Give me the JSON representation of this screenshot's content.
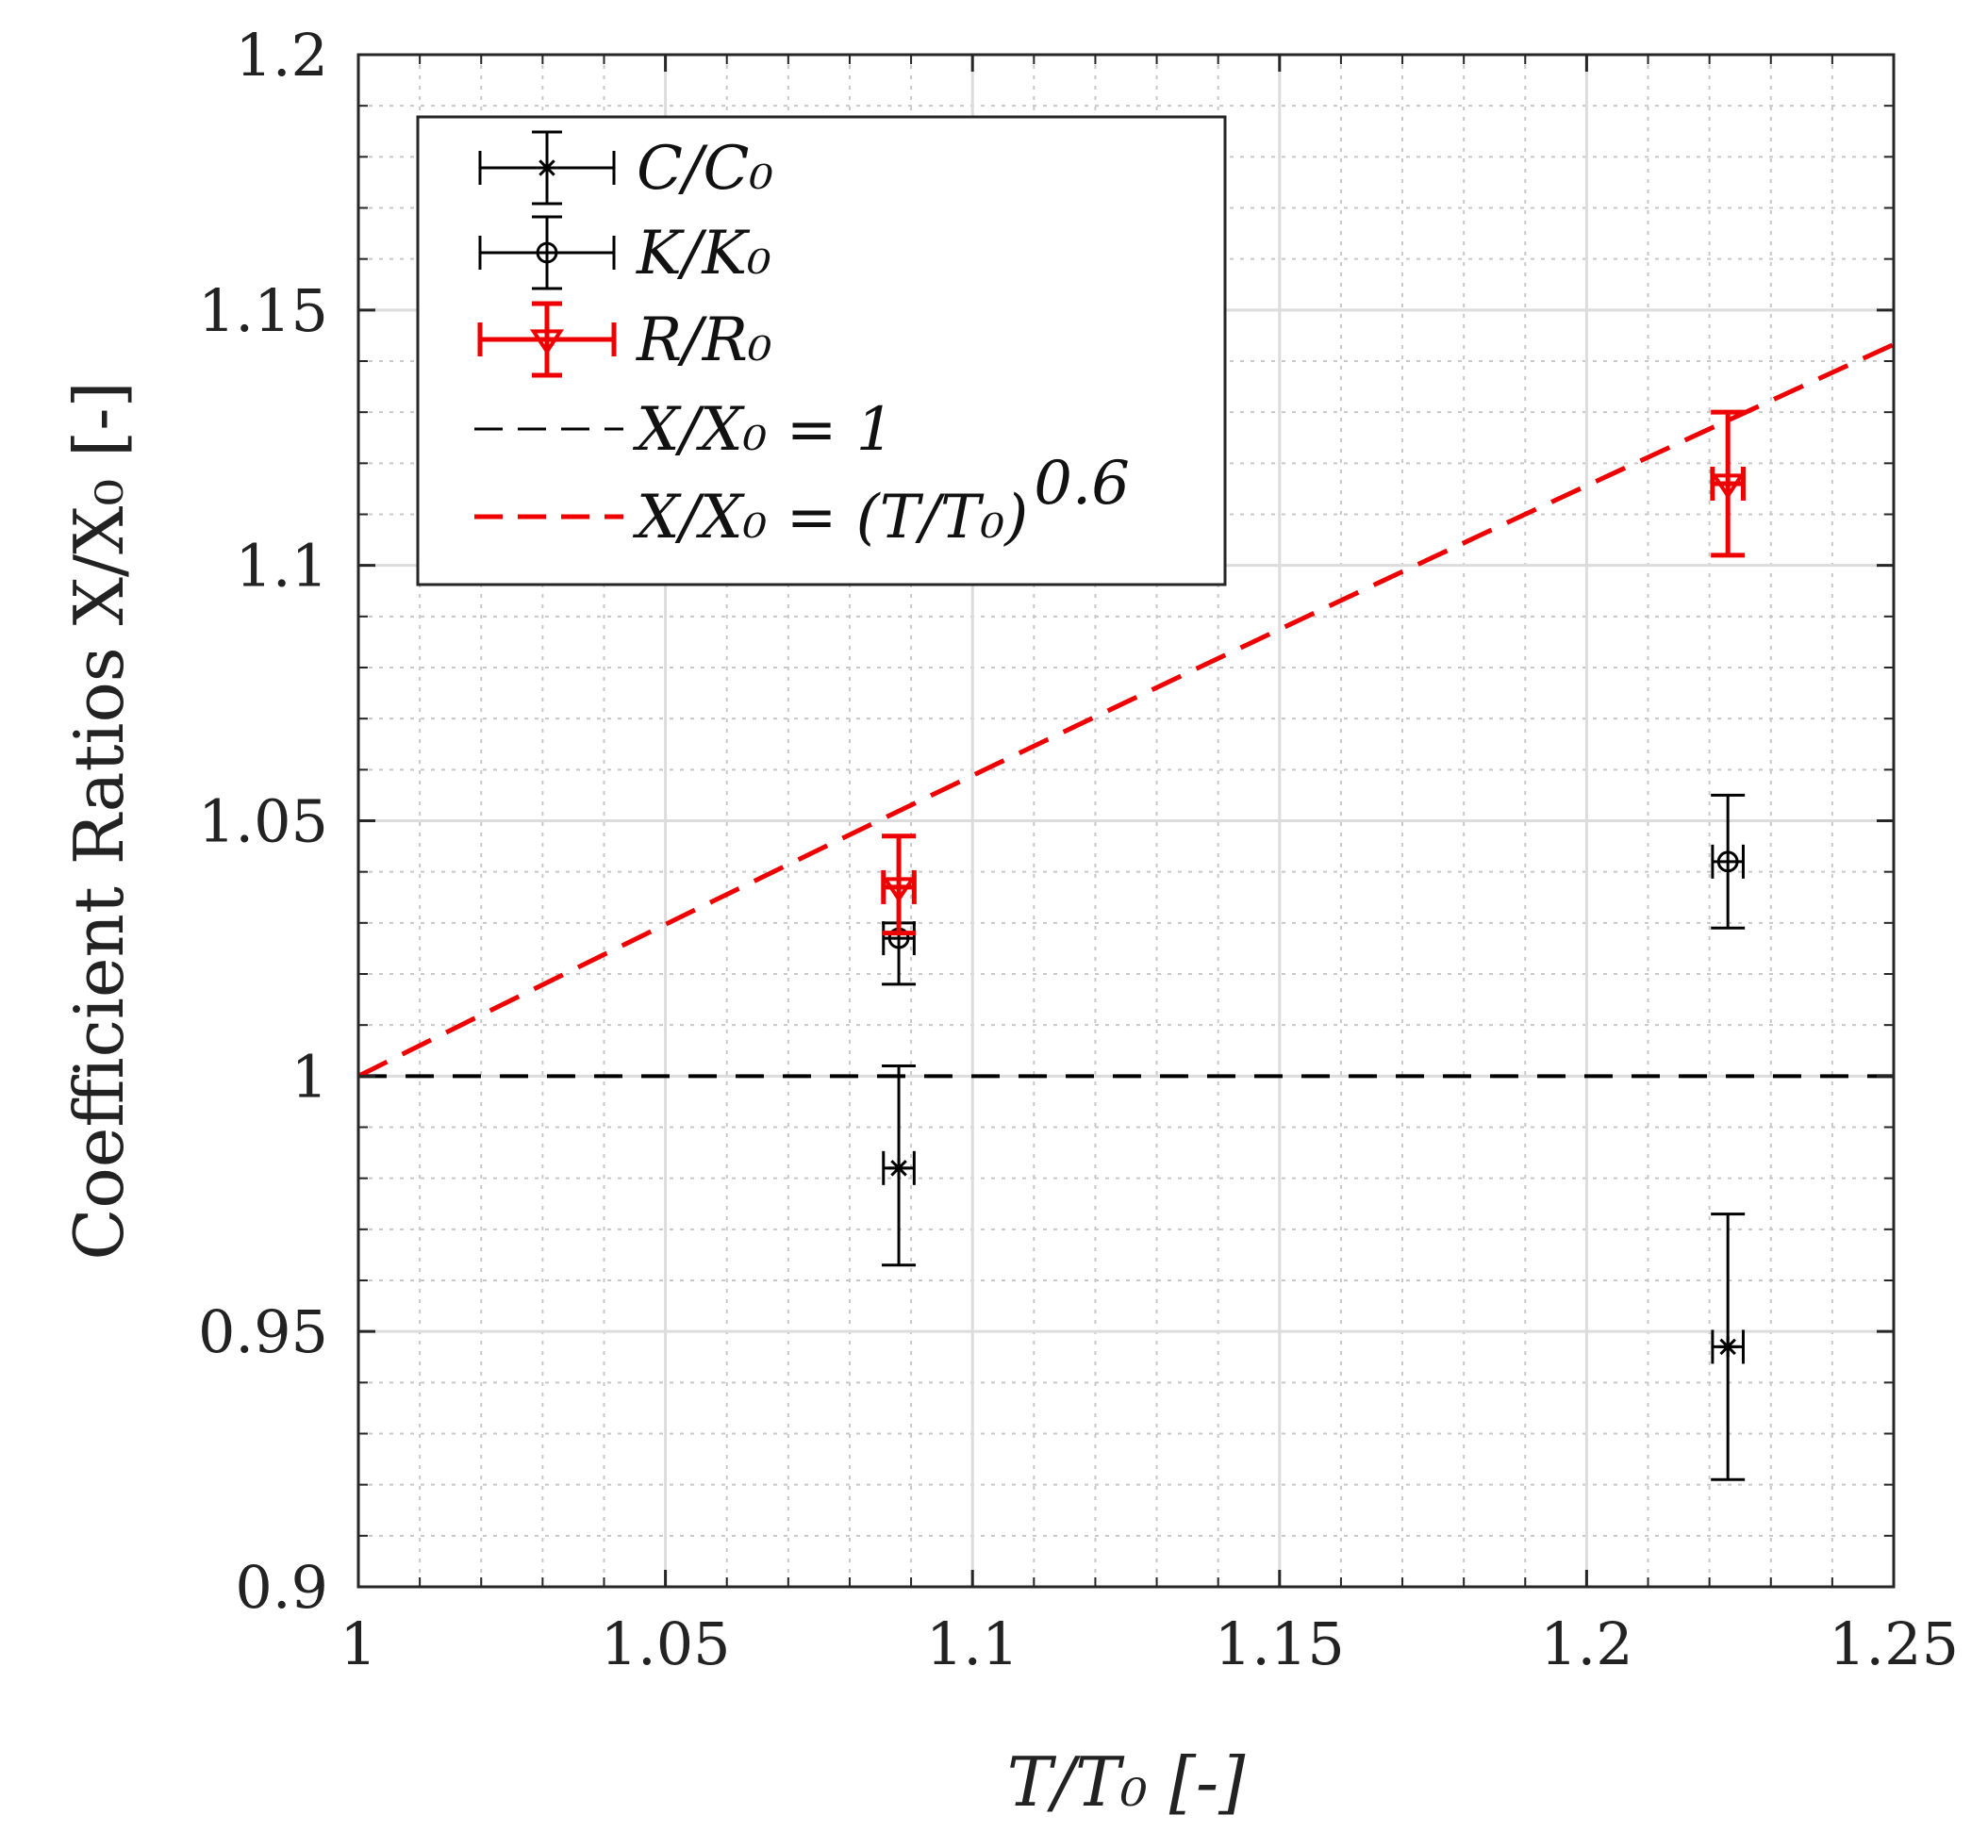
{
  "chart_data": {
    "type": "scatter",
    "title": "",
    "xlabel": "T/T₀ [-]",
    "ylabel": "Coefficient Ratios X/X₀ [-]",
    "xlim": [
      1,
      1.25
    ],
    "ylim": [
      0.9,
      1.2
    ],
    "grid": true,
    "minor_grid": true,
    "legend_position": "top-left",
    "xticks": [
      {
        "value": 1,
        "label": "1"
      },
      {
        "value": 1.05,
        "label": "1.05"
      },
      {
        "value": 1.1,
        "label": "1.1"
      },
      {
        "value": 1.15,
        "label": "1.15"
      },
      {
        "value": 1.2,
        "label": "1.2"
      },
      {
        "value": 1.25,
        "label": "1.25"
      }
    ],
    "yticks": [
      {
        "value": 0.9,
        "label": "0.9"
      },
      {
        "value": 0.95,
        "label": "0.95"
      },
      {
        "value": 1.0,
        "label": "1"
      },
      {
        "value": 1.05,
        "label": "1.05"
      },
      {
        "value": 1.1,
        "label": "1.1"
      },
      {
        "value": 1.15,
        "label": "1.15"
      },
      {
        "value": 1.2,
        "label": "1.2"
      }
    ],
    "series": [
      {
        "name": "C/C₀",
        "label": "C/C₀",
        "marker": "asterisk",
        "color": "#000000",
        "points": [
          {
            "x": 1.088,
            "y": 0.982,
            "yerr_low": 0.963,
            "yerr_high": 1.002,
            "xerr": 0.0025
          },
          {
            "x": 1.223,
            "y": 0.947,
            "yerr_low": 0.921,
            "yerr_high": 0.973,
            "xerr": 0.0025
          }
        ]
      },
      {
        "name": "K/K₀",
        "label": "K/K₀",
        "marker": "circle",
        "color": "#000000",
        "points": [
          {
            "x": 1.088,
            "y": 1.027,
            "yerr_low": 1.018,
            "yerr_high": 1.03,
            "xerr": 0.0025
          },
          {
            "x": 1.223,
            "y": 1.042,
            "yerr_low": 1.029,
            "yerr_high": 1.055,
            "xerr": 0.0025
          }
        ]
      },
      {
        "name": "R/R₀",
        "label": "R/R₀",
        "marker": "triangle-down",
        "color": "#ee0000",
        "points": [
          {
            "x": 1.088,
            "y": 1.037,
            "yerr_low": 1.028,
            "yerr_high": 1.047,
            "xerr": 0.0025
          },
          {
            "x": 1.223,
            "y": 1.116,
            "yerr_low": 1.102,
            "yerr_high": 1.13,
            "xerr": 0.0025
          }
        ]
      }
    ],
    "reference_lines": [
      {
        "name": "X/X₀ = 1",
        "label": "X/X₀ = 1",
        "color": "#000000",
        "style": "dashed",
        "kind": "constant",
        "value": 1
      },
      {
        "name": "X/X₀ = (T/T₀)^0.6",
        "label": "X/X₀ = (T/T₀)",
        "exponent_label": "0.6",
        "color": "#ee0000",
        "style": "dashed",
        "kind": "power",
        "exponent": 0.6
      }
    ]
  }
}
